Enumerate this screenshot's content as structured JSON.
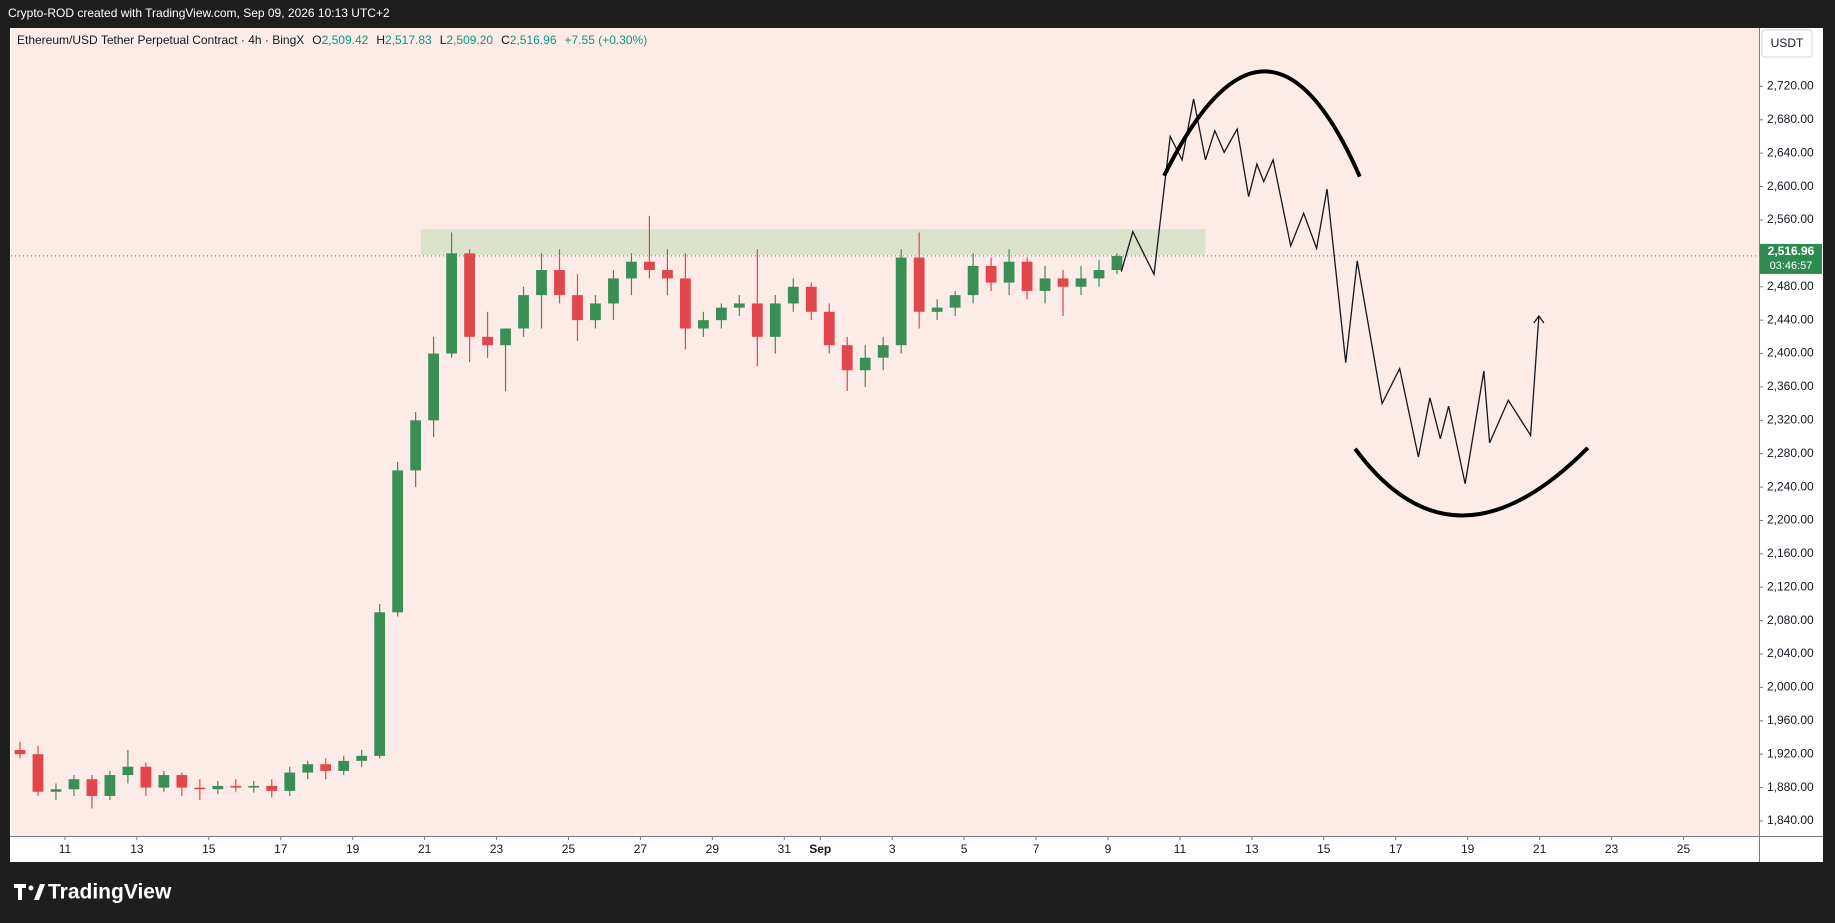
{
  "attribution": "Crypto-ROD created with TradingView.com, Sep 09, 2026 10:13 UTC+2",
  "branding": "TradingView",
  "chart_data": {
    "type": "candlestick",
    "title": "Ethereum/USD Tether Perpetual Contract · 4h · BingX",
    "legend_ohlc": [
      {
        "key": "O",
        "text": "2,509.42"
      },
      {
        "key": "H",
        "text": "2,517.83"
      },
      {
        "key": "L",
        "text": "2,509.20"
      },
      {
        "key": "C",
        "text": "2,516.96"
      }
    ],
    "change": "+7.55 (+0.30%)",
    "currency": "USDT",
    "up_color": "#3a8f55",
    "down_color": "#e0464c",
    "x": [
      9.75,
      10.25,
      10.75,
      11.25,
      11.75,
      12.25,
      12.75,
      13.25,
      13.75,
      14.25,
      14.75,
      15.25,
      15.75,
      16.25,
      16.75,
      17.25,
      17.75,
      18.25,
      18.75,
      19.25,
      19.75,
      20.25,
      20.75,
      21.25,
      21.75,
      22.25,
      22.75,
      23.25,
      23.75,
      24.25,
      24.75,
      25.25,
      25.75,
      26.25,
      26.75,
      27.25,
      27.75,
      28.25,
      28.75,
      29.25,
      29.75,
      30.25,
      30.75,
      31.25,
      31.75,
      32.25,
      32.75,
      33.25,
      33.75,
      34.25,
      34.75,
      35.25,
      35.75,
      36.25,
      36.75,
      37.25,
      37.75,
      38.25,
      38.75,
      39.25,
      39.75,
      40.25
    ],
    "open": [
      1925,
      1920,
      1875,
      1878,
      1890,
      1870,
      1895,
      1905,
      1880,
      1895,
      1880,
      1878,
      1882,
      1880,
      1882,
      1876,
      1898,
      1908,
      1900,
      1912,
      1918,
      2090,
      2260,
      2320,
      2400,
      2520,
      2420,
      2410,
      2430,
      2470,
      2500,
      2470,
      2440,
      2460,
      2490,
      2510,
      2500,
      2490,
      2430,
      2440,
      2455,
      2460,
      2420,
      2460,
      2480,
      2450,
      2410,
      2380,
      2395,
      2410,
      2515,
      2450,
      2455,
      2470,
      2505,
      2485,
      2510,
      2475,
      2490,
      2480,
      2490,
      2500
    ],
    "high": [
      1935,
      1930,
      1885,
      1895,
      1895,
      1900,
      1925,
      1910,
      1900,
      1898,
      1890,
      1888,
      1890,
      1888,
      1890,
      1905,
      1912,
      1915,
      1918,
      1925,
      2100,
      2270,
      2330,
      2420,
      2545,
      2525,
      2450,
      2430,
      2480,
      2520,
      2525,
      2495,
      2470,
      2500,
      2520,
      2565,
      2525,
      2520,
      2450,
      2460,
      2470,
      2525,
      2470,
      2490,
      2485,
      2460,
      2420,
      2410,
      2420,
      2525,
      2545,
      2465,
      2475,
      2520,
      2515,
      2525,
      2515,
      2505,
      2500,
      2505,
      2512,
      2520
    ],
    "low": [
      1915,
      1870,
      1865,
      1870,
      1855,
      1865,
      1885,
      1870,
      1875,
      1870,
      1865,
      1872,
      1875,
      1874,
      1868,
      1870,
      1890,
      1890,
      1895,
      1905,
      1915,
      2085,
      2240,
      2300,
      2395,
      2390,
      2395,
      2355,
      2420,
      2430,
      2460,
      2415,
      2430,
      2440,
      2470,
      2490,
      2470,
      2405,
      2420,
      2430,
      2445,
      2385,
      2400,
      2450,
      2440,
      2400,
      2355,
      2360,
      2380,
      2400,
      2430,
      2440,
      2445,
      2460,
      2475,
      2470,
      2465,
      2460,
      2445,
      2470,
      2480,
      2495
    ],
    "close": [
      1920,
      1875,
      1878,
      1890,
      1870,
      1895,
      1905,
      1880,
      1895,
      1880,
      1878,
      1882,
      1880,
      1882,
      1876,
      1898,
      1908,
      1900,
      1912,
      1918,
      2090,
      2260,
      2320,
      2400,
      2520,
      2420,
      2410,
      2430,
      2470,
      2500,
      2470,
      2440,
      2460,
      2490,
      2510,
      2500,
      2490,
      2430,
      2440,
      2455,
      2460,
      2420,
      2460,
      2480,
      2450,
      2410,
      2380,
      2395,
      2410,
      2515,
      2450,
      2455,
      2470,
      2505,
      2485,
      2510,
      2475,
      2490,
      2480,
      2490,
      2500,
      2516.96
    ],
    "last_price": {
      "value": 2516.96,
      "label": "2,516.96"
    },
    "countdown": "03:46:57",
    "zone": {
      "x": [
        20.89,
        42.71
      ],
      "y": [
        2518,
        2549
      ]
    },
    "projection": {
      "x": [
        40.37,
        40.69,
        41.28,
        41.73,
        42.06,
        42.38,
        42.71,
        42.97,
        43.23,
        43.59,
        43.91,
        44.14,
        44.33,
        44.59,
        45.08,
        45.44,
        45.8,
        46.09,
        46.61,
        46.93,
        47.62,
        48.11,
        48.63,
        48.95,
        49.24,
        49.47,
        49.93,
        50.45,
        50.61,
        51.13,
        51.75,
        51.98
      ],
      "y": [
        2498,
        2546,
        2495,
        2660,
        2632,
        2705,
        2632,
        2667,
        2641,
        2669,
        2588,
        2627,
        2606,
        2632,
        2529,
        2568,
        2526,
        2597,
        2389,
        2511,
        2340,
        2382,
        2276,
        2347,
        2298,
        2337,
        2244,
        2379,
        2293,
        2344,
        2302,
        2445
      ]
    },
    "arcs": [
      {
        "x": [
          41.56,
          44.36,
          47.0
        ],
        "y": [
          2613,
          2738,
          2612
        ]
      },
      {
        "x": [
          46.87,
          49.86,
          53.34
        ],
        "y": [
          2286,
          2206,
          2287
        ]
      }
    ],
    "xlim": [
      9.5,
      58.1
    ],
    "xticks": [
      11,
      13,
      15,
      17,
      19,
      21,
      23,
      25,
      27,
      29,
      31,
      {
        "value": 32,
        "label": "Sep"
      },
      {
        "value": 34,
        "label": "3"
      },
      {
        "value": 36,
        "label": "5"
      },
      {
        "value": 38,
        "label": "7"
      },
      {
        "value": 40,
        "label": "9"
      },
      {
        "value": 42,
        "label": "11"
      },
      {
        "value": 44,
        "label": "13"
      },
      {
        "value": 46,
        "label": "15"
      },
      {
        "value": 48,
        "label": "17"
      },
      {
        "value": 50,
        "label": "19"
      },
      {
        "value": 52,
        "label": "21"
      },
      {
        "value": 54,
        "label": "23"
      },
      {
        "value": 56,
        "label": "25"
      }
    ],
    "ylim": [
      1822,
      2790
    ],
    "yticks": [
      {
        "value": 1840,
        "label": "1,840.00"
      },
      {
        "value": 1880,
        "label": "1,880.00"
      },
      {
        "value": 1920,
        "label": "1,920.00"
      },
      {
        "value": 1960,
        "label": "1,960.00"
      },
      {
        "value": 2000,
        "label": "2,000.00"
      },
      {
        "value": 2040,
        "label": "2,040.00"
      },
      {
        "value": 2080,
        "label": "2,080.00"
      },
      {
        "value": 2120,
        "label": "2,120.00"
      },
      {
        "value": 2160,
        "label": "2,160.00"
      },
      {
        "value": 2200,
        "label": "2,200.00"
      },
      {
        "value": 2240,
        "label": "2,240.00"
      },
      {
        "value": 2280,
        "label": "2,280.00"
      },
      {
        "value": 2320,
        "label": "2,320.00"
      },
      {
        "value": 2360,
        "label": "2,360.00"
      },
      {
        "value": 2400,
        "label": "2,400.00"
      },
      {
        "value": 2440,
        "label": "2,440.00"
      },
      {
        "value": 2480,
        "label": "2,480.00"
      },
      {
        "value": 2560,
        "label": "2,560.00"
      },
      {
        "value": 2600,
        "label": "2,600.00"
      },
      {
        "value": 2640,
        "label": "2,640.00"
      },
      {
        "value": 2680,
        "label": "2,680.00"
      },
      {
        "value": 2720,
        "label": "2,720.00"
      }
    ],
    "grid": false
  }
}
